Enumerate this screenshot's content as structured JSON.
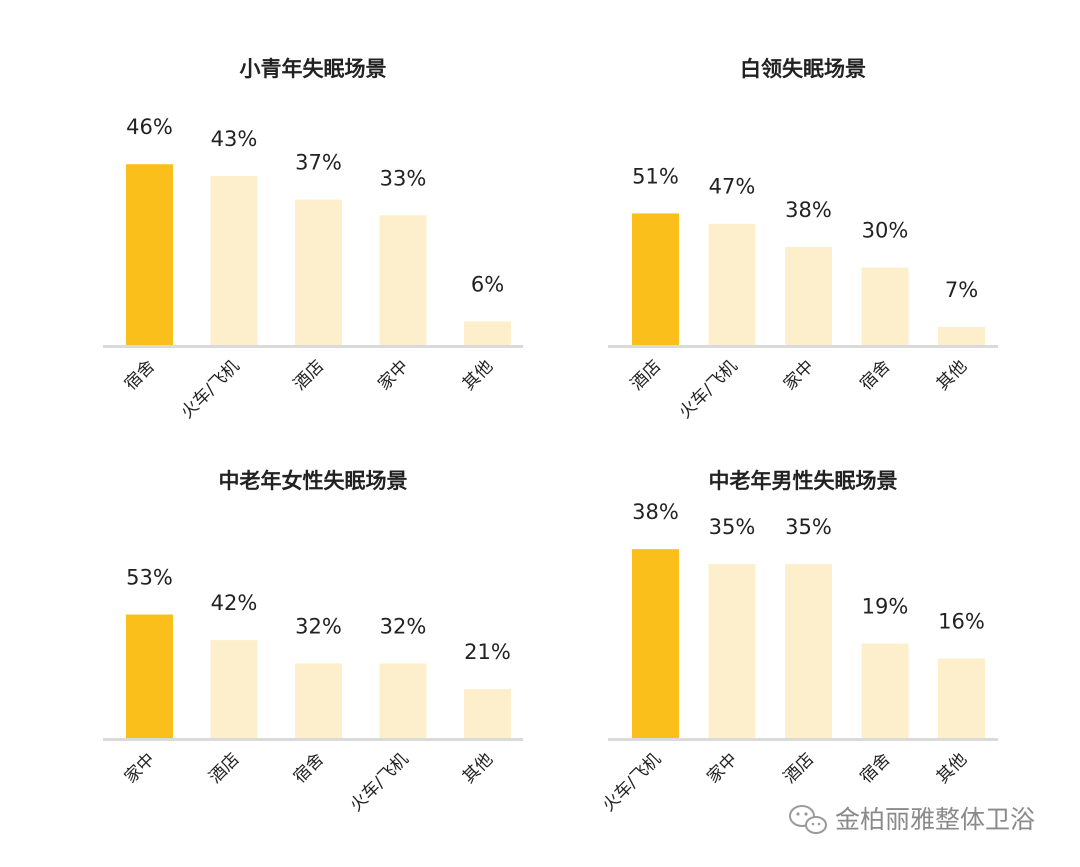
{
  "watermark": "金柏丽雅整体卫浴",
  "colors": {
    "highlight": "#FBBF1B",
    "bar": "#FDEFCB",
    "axis": "#DADADA",
    "text": "#222222"
  },
  "chart_data": [
    {
      "type": "bar",
      "title": "小青年失眠场景",
      "categories": [
        "宿舍",
        "火车/飞机",
        "酒店",
        "家中",
        "其他"
      ],
      "values": [
        46,
        43,
        37,
        33,
        6
      ],
      "labels": [
        "46%",
        "43%",
        "37%",
        "33%",
        "6%"
      ]
    },
    {
      "type": "bar",
      "title": "白领失眠场景",
      "categories": [
        "酒店",
        "火车/飞机",
        "家中",
        "宿舍",
        "其他"
      ],
      "values": [
        51,
        47,
        38,
        30,
        7
      ],
      "labels": [
        "51%",
        "47%",
        "38%",
        "30%",
        "7%"
      ]
    },
    {
      "type": "bar",
      "title": "中老年女性失眠场景",
      "categories": [
        "家中",
        "酒店",
        "宿舍",
        "火车/飞机",
        "其他"
      ],
      "values": [
        53,
        42,
        32,
        32,
        21
      ],
      "labels": [
        "53%",
        "42%",
        "32%",
        "32%",
        "21%"
      ]
    },
    {
      "type": "bar",
      "title": "中老年男性失眠场景",
      "categories": [
        "火车/飞机",
        "家中",
        "酒店",
        "宿舍",
        "其他"
      ],
      "values": [
        38,
        35,
        35,
        19,
        16
      ],
      "labels": [
        "38%",
        "35%",
        "35%",
        "19%",
        "16%"
      ]
    }
  ]
}
